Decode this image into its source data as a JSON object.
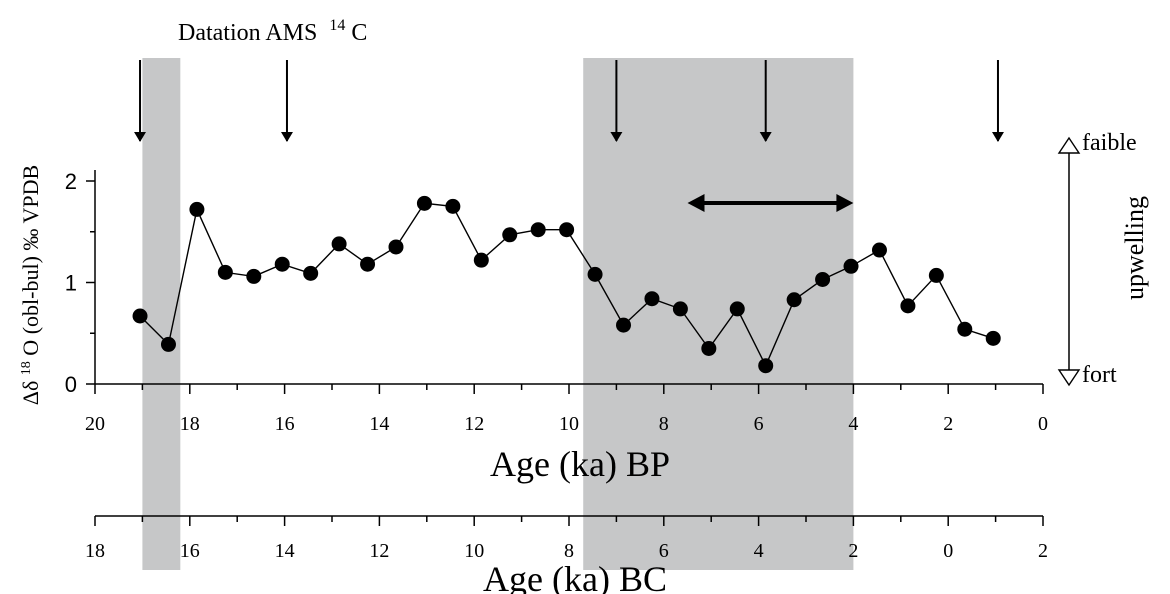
{
  "chart_data": {
    "type": "scatter",
    "title": "",
    "annotation_title": "Datation AMS",
    "annotation_title_sup": "14",
    "annotation_title_end": "C",
    "ylabel": {
      "prefix": "Δδ",
      "sup": "18",
      "suffix": "O (obl-bul) ‰ VPDB"
    },
    "xlabel_bp": "Age (ka) BP",
    "xlabel_bc": "Age (ka) BC",
    "right_label": "upwelling",
    "top_right_label": "faible",
    "bottom_right_label": "fort",
    "xlim": [
      20,
      0
    ],
    "ylim": [
      0,
      2
    ],
    "y_ticks": [
      "0",
      "1",
      "2"
    ],
    "bp_ticks": [
      "20",
      "18",
      "16",
      "14",
      "12",
      "10",
      "8",
      "6",
      "4",
      "2",
      "0"
    ],
    "bc_ticks": [
      "18",
      "16",
      "14",
      "12",
      "10",
      "8",
      "6",
      "4",
      "2",
      "0",
      "2"
    ],
    "shaded_ranges_ka_bp": [
      [
        19.0,
        18.2
      ],
      [
        9.7,
        4.0
      ]
    ],
    "dating_arrows_ka_bp": [
      19.05,
      15.95,
      9.0,
      5.85,
      0.95
    ],
    "double_arrow_ka_bp": [
      7.5,
      4.0
    ],
    "series": [
      {
        "x": [
          19.05,
          18.45,
          17.85,
          17.25,
          16.65,
          16.05,
          15.45,
          14.85,
          14.25,
          13.65,
          13.05,
          12.45,
          11.85,
          11.25,
          10.65,
          10.05,
          9.45,
          8.85,
          8.25,
          7.65,
          7.05,
          6.45,
          5.85,
          5.25,
          4.65,
          4.05,
          3.45,
          2.85,
          2.25,
          1.65,
          1.05
        ],
        "y": [
          0.67,
          0.39,
          1.72,
          1.1,
          1.06,
          1.18,
          1.09,
          1.38,
          1.18,
          1.35,
          1.78,
          1.75,
          1.22,
          1.47,
          1.52,
          1.52,
          1.08,
          0.58,
          0.84,
          0.74,
          0.35,
          0.74,
          0.18,
          0.83,
          1.03,
          1.16,
          1.32,
          0.77,
          1.07,
          0.54,
          0.45
        ]
      }
    ]
  }
}
